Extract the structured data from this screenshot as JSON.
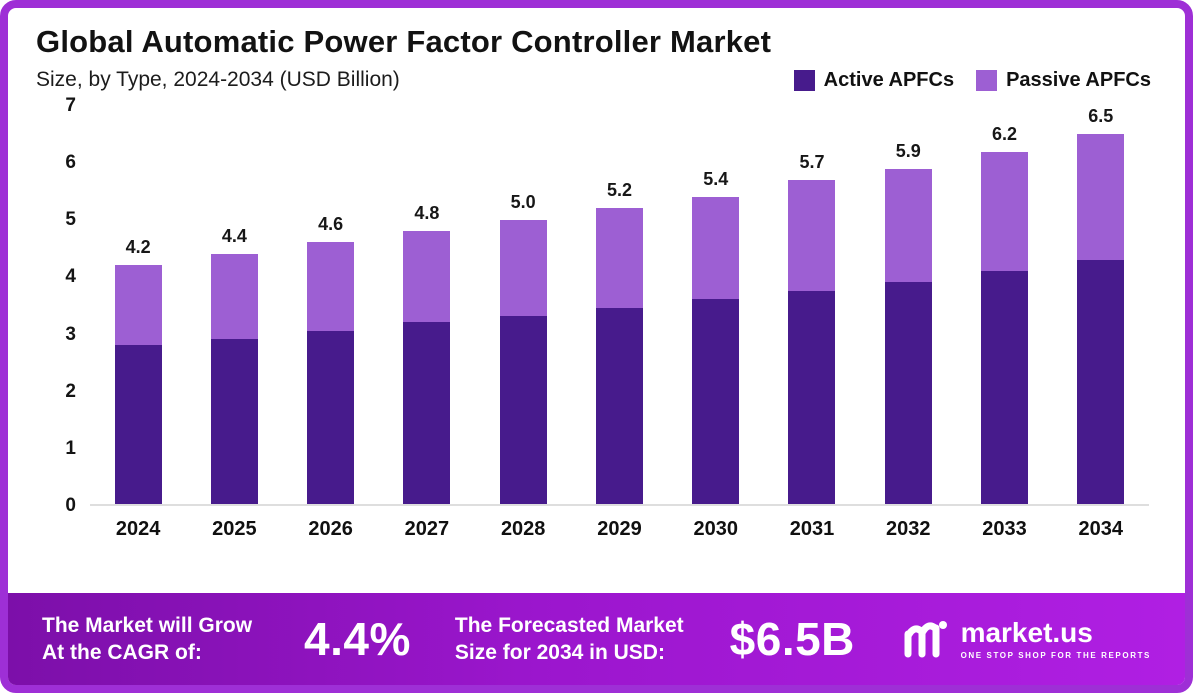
{
  "header": {
    "title": "Global Automatic Power Factor Controller Market",
    "subtitle": "Size, by Type, 2024-2034 (USD Billion)"
  },
  "legend": [
    {
      "label": "Active APFCs",
      "color": "#471b8c"
    },
    {
      "label": "Passive APFCs",
      "color": "#9d5fd3"
    }
  ],
  "chart_data": {
    "type": "bar",
    "stacked": true,
    "title": "Global Automatic Power Factor Controller Market Size, by Type, 2024-2034 (USD Billion)",
    "categories": [
      "2024",
      "2025",
      "2026",
      "2027",
      "2028",
      "2029",
      "2030",
      "2031",
      "2032",
      "2033",
      "2034"
    ],
    "series": [
      {
        "name": "Active APFCs",
        "color": "#471b8c",
        "values": [
          2.8,
          2.9,
          3.05,
          3.2,
          3.3,
          3.45,
          3.6,
          3.75,
          3.9,
          4.1,
          4.3
        ]
      },
      {
        "name": "Passive APFCs",
        "color": "#9d5fd3",
        "values": [
          1.4,
          1.5,
          1.55,
          1.6,
          1.7,
          1.75,
          1.8,
          1.95,
          2.0,
          2.1,
          2.2
        ]
      }
    ],
    "totals": [
      "4.2",
      "4.4",
      "4.6",
      "4.8",
      "5.0",
      "5.2",
      "5.4",
      "5.7",
      "5.9",
      "6.2",
      "6.5"
    ],
    "xlabel": "",
    "ylabel": "",
    "ylim": [
      0,
      7
    ],
    "ytick_step": 1,
    "grid": false,
    "legend_position": "top-right"
  },
  "footer": {
    "cagr_label_line1": "The Market will Grow",
    "cagr_label_line2": "At the CAGR of:",
    "cagr_value": "4.4%",
    "forecast_label_line1": "The Forecasted Market",
    "forecast_label_line2": "Size for 2034 in USD:",
    "forecast_value": "$6.5B",
    "brand_name": "market.us",
    "brand_tagline": "ONE STOP SHOP FOR THE REPORTS"
  },
  "colors": {
    "border": "#9e2fd6",
    "footer_gradient_start": "#7c0fa9",
    "footer_gradient_end": "#b01fe3",
    "active_series": "#471b8c",
    "passive_series": "#9d5fd3"
  }
}
